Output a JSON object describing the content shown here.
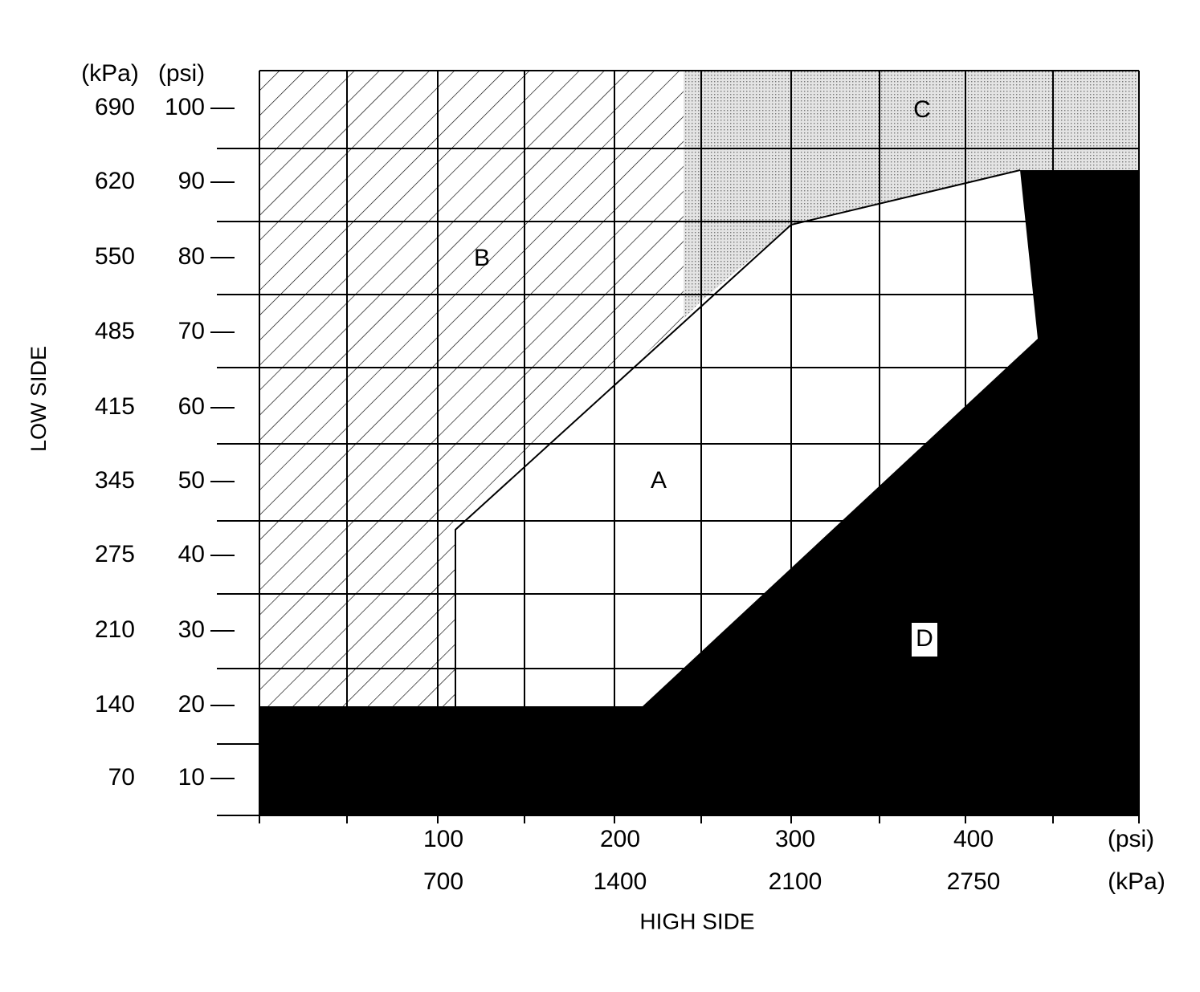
{
  "y_axis": {
    "title": "LOW SIDE",
    "units": [
      "(kPa)",
      "(psi)"
    ],
    "labels": [
      {
        "kpa": "690",
        "psi": "100"
      },
      {
        "kpa": "620",
        "psi": "90"
      },
      {
        "kpa": "550",
        "psi": "80"
      },
      {
        "kpa": "485",
        "psi": "70"
      },
      {
        "kpa": "415",
        "psi": "60"
      },
      {
        "kpa": "345",
        "psi": "50"
      },
      {
        "kpa": "275",
        "psi": "40"
      },
      {
        "kpa": "210",
        "psi": "30"
      },
      {
        "kpa": "140",
        "psi": "20"
      },
      {
        "kpa": "70",
        "psi": "10"
      }
    ]
  },
  "x_axis": {
    "title": "HIGH SIDE",
    "units": [
      "(psi)",
      "(kPa)"
    ],
    "labels": [
      {
        "psi": "100",
        "kpa": "700"
      },
      {
        "psi": "200",
        "kpa": "1400"
      },
      {
        "psi": "300",
        "kpa": "2100"
      },
      {
        "psi": "400",
        "kpa": "2750"
      }
    ]
  },
  "regions": [
    "A",
    "B",
    "C",
    "D"
  ]
}
